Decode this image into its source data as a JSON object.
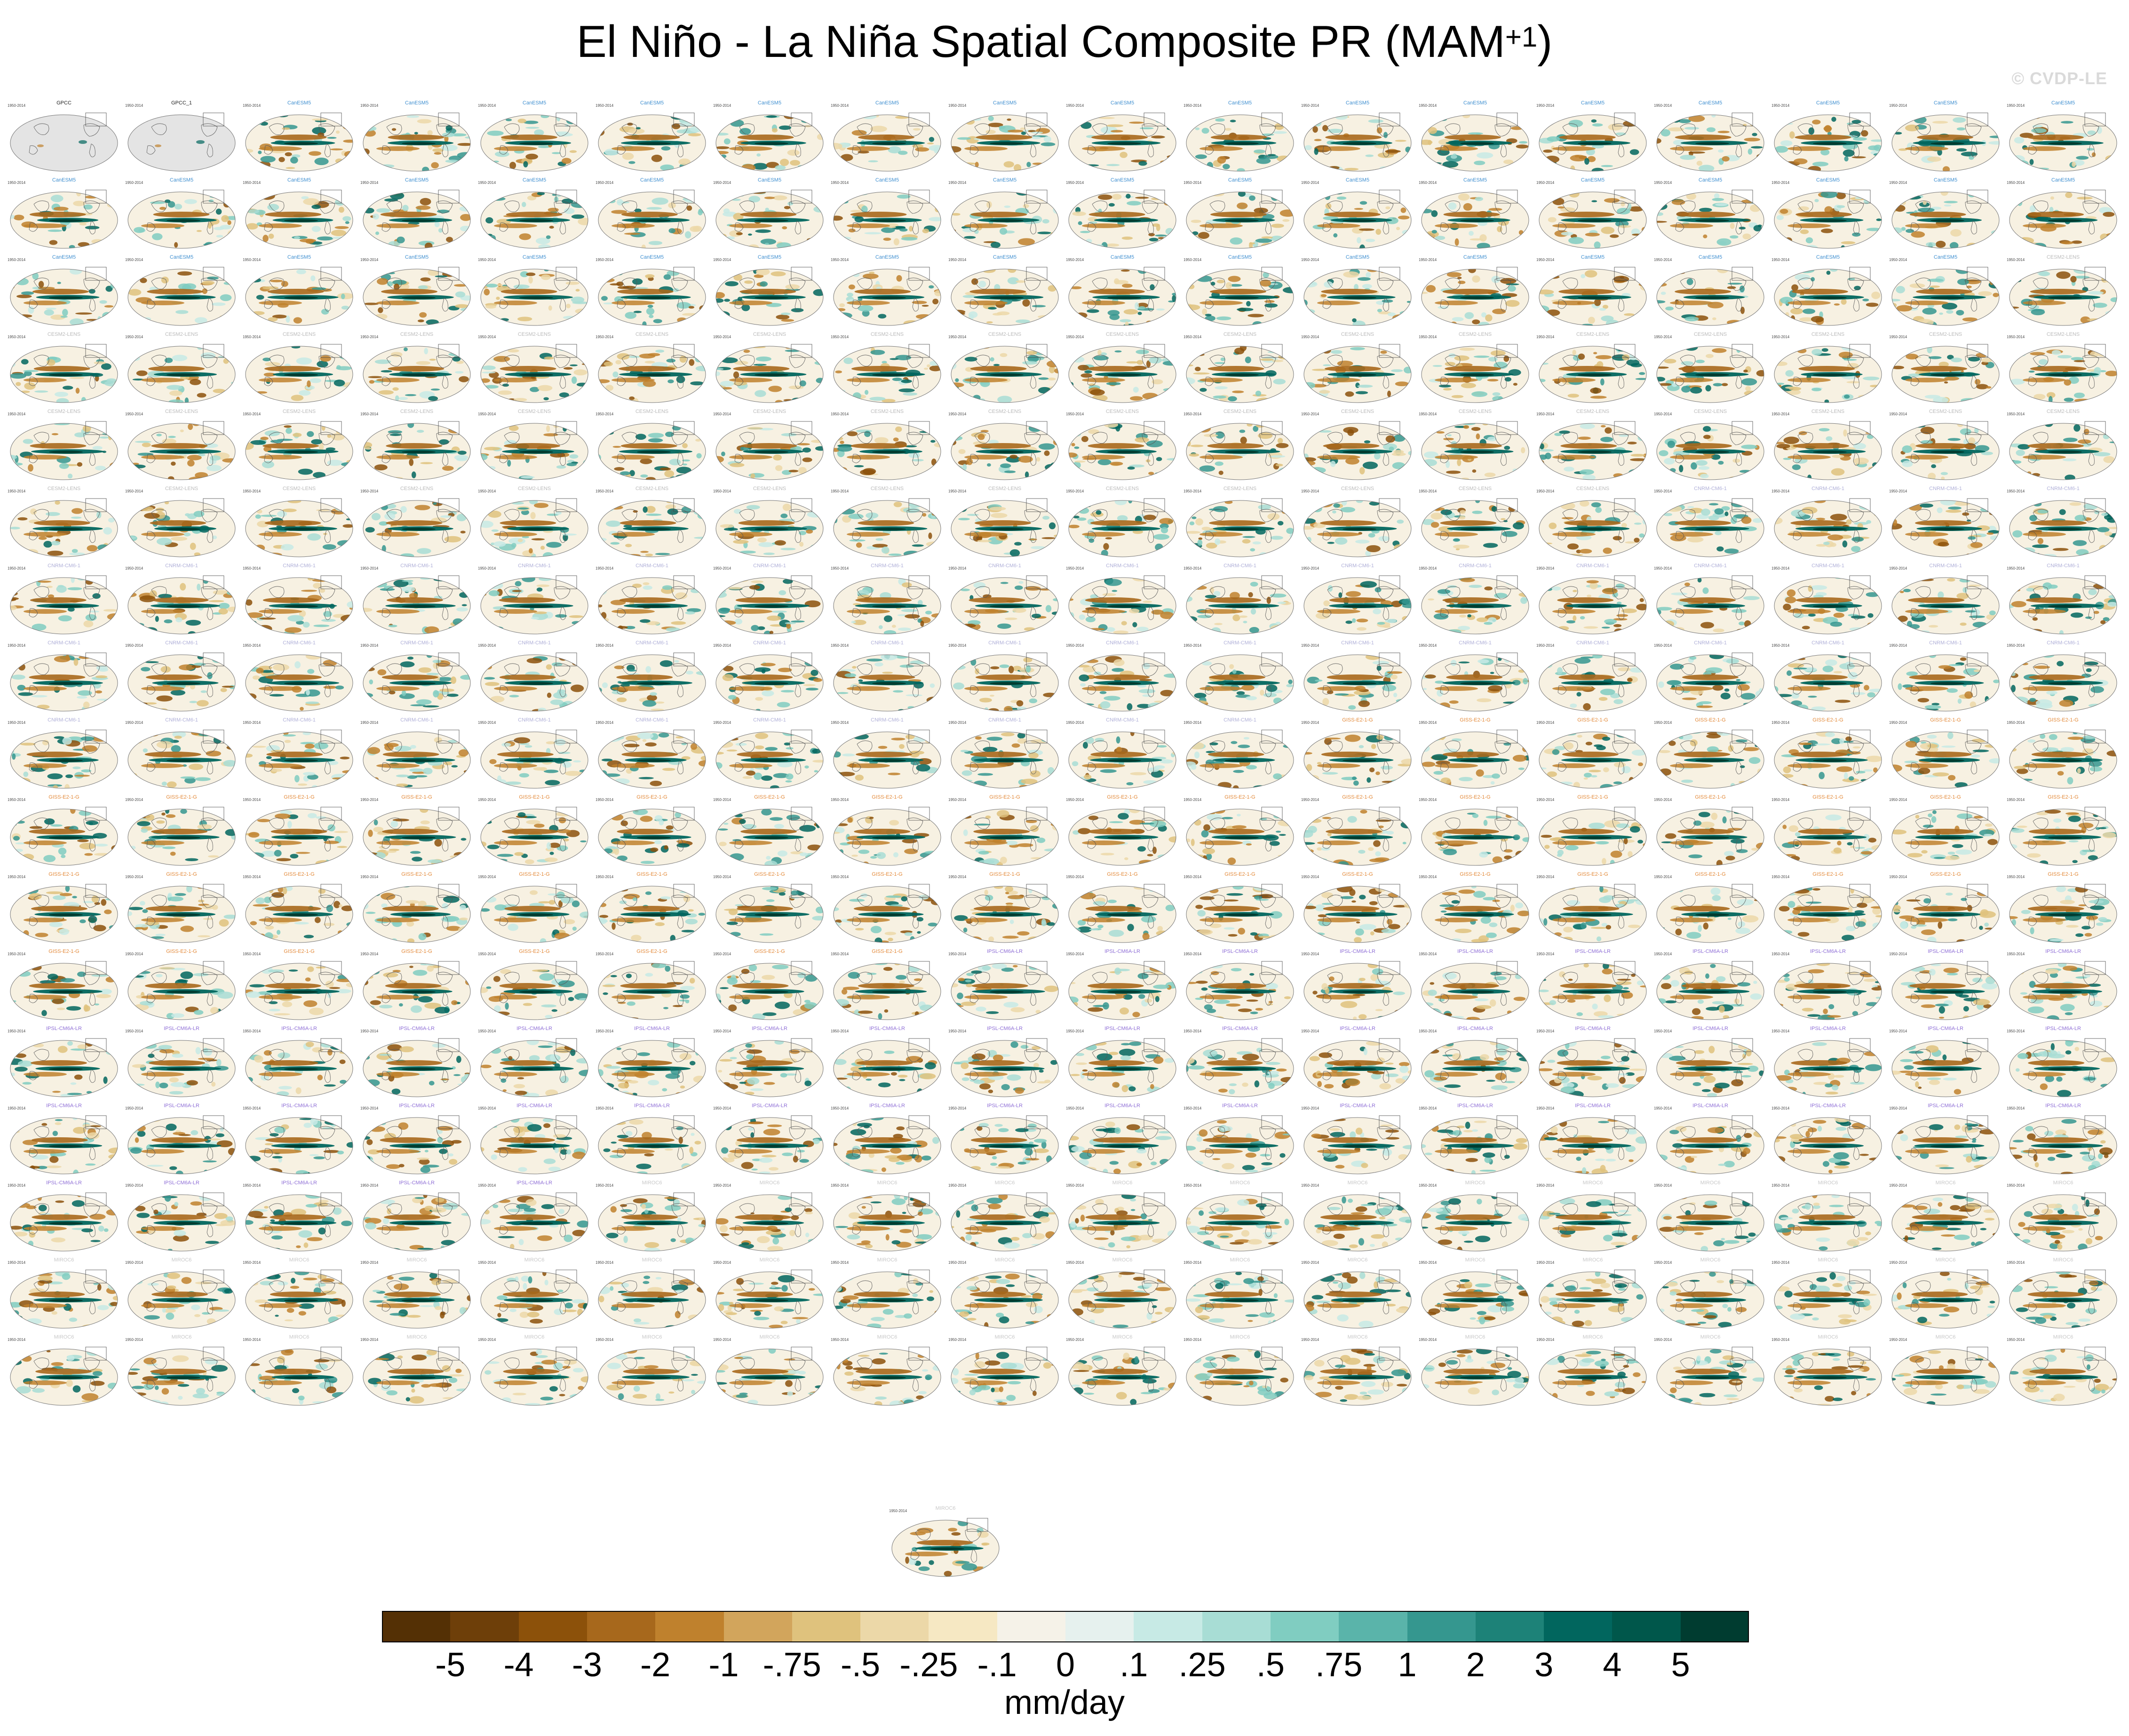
{
  "title_main": "El Niño - La Niña Spatial Composite PR (MAM",
  "title_sup": "+1",
  "title_close": ")",
  "watermark": "© CVDP-LE",
  "chart_data": {
    "type": "heatmap",
    "title": "El Niño - La Niña Spatial Composite PR (MAM+1)",
    "panel_count": 307,
    "panel_grid": {
      "rows": 17,
      "columns": 18,
      "extra_row_panels": 1
    },
    "panel_period": "1950-2014",
    "observation_panels": [
      "GPCC",
      "GPCC_1"
    ],
    "model_groups": [
      "CanESM5",
      "CESM2-LENS",
      "CNRM-CM6-1",
      "GISS-E2-1-G",
      "IPSL-CM6A-LR",
      "MIROC6"
    ],
    "colorbar": {
      "units": "mm/day",
      "levels": [
        "-5",
        "-4",
        "-3",
        "-2",
        "-1",
        "-.75",
        "-.5",
        "-.25",
        "-.1",
        "0",
        ".1",
        ".25",
        ".5",
        ".75",
        "1",
        "2",
        "3",
        "4",
        "5"
      ],
      "colors": [
        "#543005",
        "#6e3f09",
        "#8c510a",
        "#a7681c",
        "#bf812d",
        "#d2a55c",
        "#dfc27d",
        "#ecd8a8",
        "#f6e8c3",
        "#f5f2e8",
        "#e6f1ee",
        "#c7eae5",
        "#a8ddd5",
        "#80cdc1",
        "#5ab4aa",
        "#35978f",
        "#1d8278",
        "#01665e",
        "#00574b",
        "#003c30"
      ]
    }
  }
}
